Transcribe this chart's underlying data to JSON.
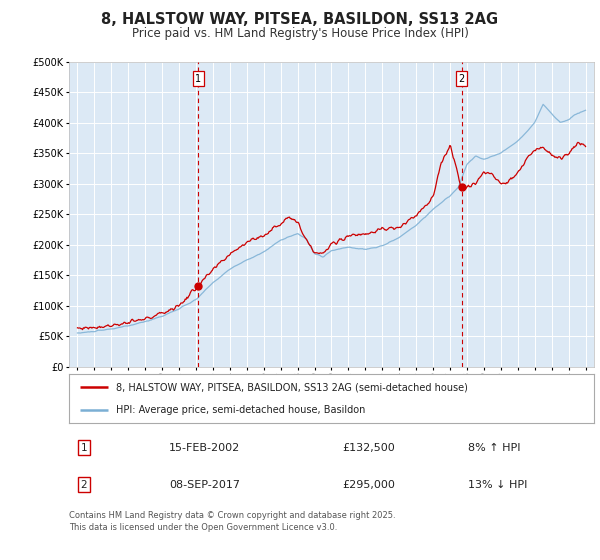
{
  "title": "8, HALSTOW WAY, PITSEA, BASILDON, SS13 2AG",
  "subtitle": "Price paid vs. HM Land Registry's House Price Index (HPI)",
  "title_fontsize": 10.5,
  "subtitle_fontsize": 8.5,
  "background_color": "#ffffff",
  "plot_bg_color": "#dce9f5",
  "grid_color": "#ffffff",
  "red_line_color": "#cc0000",
  "blue_line_color": "#7bafd4",
  "vline_color": "#cc0000",
  "marker1_x": 2002.12,
  "marker1_y": 132500,
  "marker2_x": 2017.69,
  "marker2_y": 295000,
  "ylim": [
    0,
    500000
  ],
  "xlim_start": 1994.5,
  "xlim_end": 2025.5,
  "yticks": [
    0,
    50000,
    100000,
    150000,
    200000,
    250000,
    300000,
    350000,
    400000,
    450000,
    500000
  ],
  "xticks": [
    1995,
    1996,
    1997,
    1998,
    1999,
    2000,
    2001,
    2002,
    2003,
    2004,
    2005,
    2006,
    2007,
    2008,
    2009,
    2010,
    2011,
    2012,
    2013,
    2014,
    2015,
    2016,
    2017,
    2018,
    2019,
    2020,
    2021,
    2022,
    2023,
    2024,
    2025
  ],
  "legend_label_red": "8, HALSTOW WAY, PITSEA, BASILDON, SS13 2AG (semi-detached house)",
  "legend_label_blue": "HPI: Average price, semi-detached house, Basildon",
  "annotation1_label": "1",
  "annotation1_date": "15-FEB-2002",
  "annotation1_price": "£132,500",
  "annotation1_hpi": "8% ↑ HPI",
  "annotation2_label": "2",
  "annotation2_date": "08-SEP-2017",
  "annotation2_price": "£295,000",
  "annotation2_hpi": "13% ↓ HPI",
  "footer": "Contains HM Land Registry data © Crown copyright and database right 2025.\nThis data is licensed under the Open Government Licence v3.0."
}
